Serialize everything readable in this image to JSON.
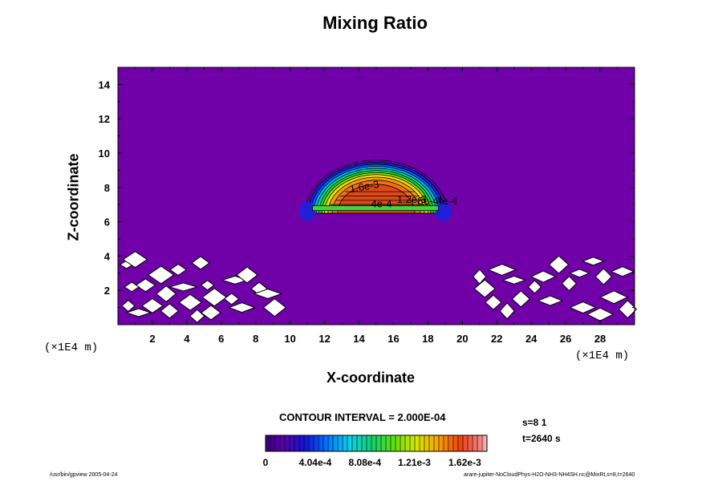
{
  "chart_data": {
    "type": "contour",
    "title": "Mixing Ratio",
    "xlabel": "X-coordinate",
    "ylabel": "Z-coordinate",
    "x_unit_label": "(×1E4 m)",
    "y_unit_label": "(×1E4 m)",
    "xlim": [
      0,
      30
    ],
    "ylim": [
      0,
      15
    ],
    "x_ticks": [
      "2",
      "4",
      "6",
      "8",
      "10",
      "12",
      "14",
      "16",
      "18",
      "20",
      "22",
      "24",
      "26",
      "28"
    ],
    "y_ticks": [
      "2",
      "4",
      "6",
      "8",
      "10",
      "12",
      "14"
    ],
    "contour_interval_label": "CONTOUR INTERVAL = 2.000E-04",
    "colorbar": {
      "range": [
        0,
        0.0018
      ],
      "tick_labels": [
        "0",
        "4.04e-4",
        "8.08e-4",
        "1.21e-3",
        "1.62e-3"
      ]
    },
    "contour_labels": [
      "1.6e-3",
      "1.2e-3",
      "8e-4",
      "4e-4",
      "4e-4"
    ],
    "max_value_approx": 0.0016,
    "cloud": {
      "x_center": 15,
      "x_extent": [
        11,
        19
      ],
      "z_base": 6.5,
      "z_top": 9.5
    },
    "colors": {
      "background": "#7000a8",
      "peak": "#e04818"
    },
    "annotations": {
      "s": "s=8 1",
      "t": "t=2640 s"
    }
  },
  "footer": {
    "left": "/usr/bin/gpview 2005-04-24",
    "right": "arare-jupiter-NoCloudPhys-H2O-NH3-NH4SH.nc@MixRt,s=8,t=2640"
  }
}
